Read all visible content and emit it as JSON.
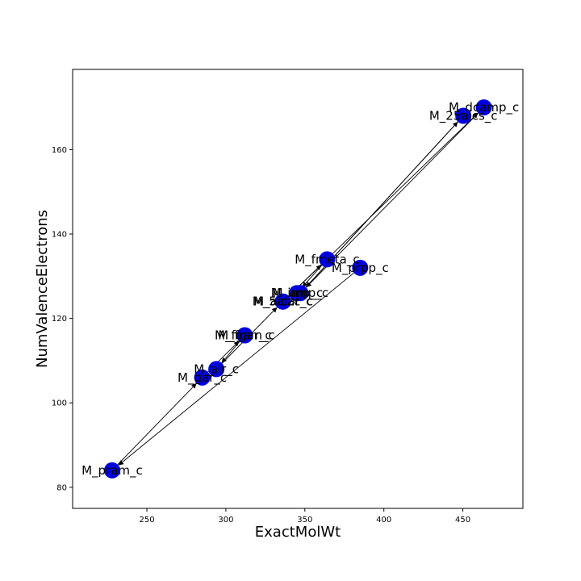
{
  "chart_data": {
    "type": "scatter",
    "xlabel": "ExactMolWt",
    "ylabel": "NumValenceElectrons",
    "xlim": [
      203,
      488
    ],
    "ylim": [
      75,
      179
    ],
    "xticks": [
      250,
      300,
      350,
      400,
      450
    ],
    "yticks": [
      80,
      100,
      120,
      140,
      160
    ],
    "grid": false,
    "point_color": "#0000dd",
    "points": [
      {
        "label": "M_dcamp_c",
        "x": 463.3,
        "y": 170
      },
      {
        "label": "M_25aics_c",
        "x": 450.3,
        "y": 168
      },
      {
        "label": "M_fmeta_c",
        "x": 364.1,
        "y": 134
      },
      {
        "label": "M_prpp_c",
        "x": 385.0,
        "y": 132
      },
      {
        "label": "M_amp_c",
        "x": 347.2,
        "y": 126
      },
      {
        "label": "M_imp_c",
        "x": 345.0,
        "y": 126
      },
      {
        "label": "M_5aizc_c",
        "x": 336.0,
        "y": 124
      },
      {
        "label": "M_aicar_c",
        "x": 336.2,
        "y": 124
      },
      {
        "label": "M_fgam_c",
        "x": 312.0,
        "y": 116
      },
      {
        "label": "M_fgar_c",
        "x": 312.0,
        "y": 116
      },
      {
        "label": "M_air_c",
        "x": 294.0,
        "y": 108
      },
      {
        "label": "M_gar_c",
        "x": 285.0,
        "y": 106
      },
      {
        "label": "M_pram_c",
        "x": 228.0,
        "y": 84
      }
    ],
    "edges": [
      {
        "from": "M_prpp_c",
        "to": "M_pram_c"
      },
      {
        "from": "M_pram_c",
        "to": "M_gar_c"
      },
      {
        "from": "M_gar_c",
        "to": "M_fgar_c"
      },
      {
        "from": "M_fgar_c",
        "to": "M_fgam_c"
      },
      {
        "from": "M_fgam_c",
        "to": "M_air_c"
      },
      {
        "from": "M_air_c",
        "to": "M_5aizc_c"
      },
      {
        "from": "M_5aizc_c",
        "to": "M_aicar_c"
      },
      {
        "from": "M_aicar_c",
        "to": "M_fmeta_c"
      },
      {
        "from": "M_fmeta_c",
        "to": "M_imp_c"
      },
      {
        "from": "M_imp_c",
        "to": "M_amp_c"
      },
      {
        "from": "M_amp_c",
        "to": "M_25aics_c"
      },
      {
        "from": "M_25aics_c",
        "to": "M_amp_c"
      },
      {
        "from": "M_aicar_c",
        "to": "M_dcamp_c"
      },
      {
        "from": "M_dcamp_c",
        "to": "M_amp_c"
      }
    ]
  }
}
